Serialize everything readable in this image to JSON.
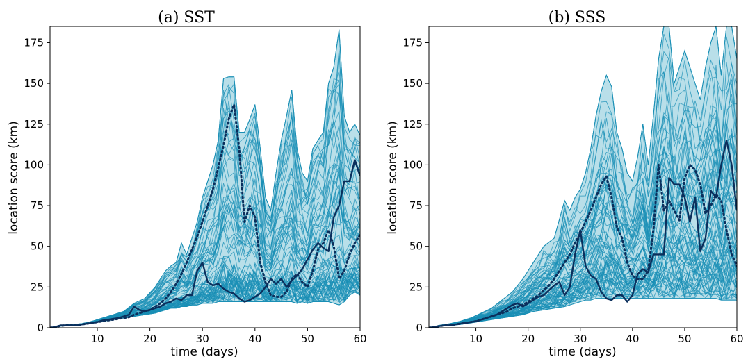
{
  "chart_data": [
    {
      "type": "area",
      "title": "(a) SST",
      "xlabel": "time (days)",
      "ylabel": "location score (km)",
      "xlim": [
        1,
        60
      ],
      "ylim": [
        0,
        185
      ],
      "xticks": [
        10,
        20,
        30,
        40,
        50,
        60
      ],
      "yticks": [
        0,
        25,
        50,
        75,
        100,
        125,
        150,
        175
      ],
      "grid": false,
      "colors": {
        "band_fill": "#b9dfe9",
        "ensemble": "#1a8fb5",
        "highlight": "#0b2f5c"
      },
      "envelope": {
        "x": [
          1,
          3,
          5,
          7,
          9,
          11,
          13,
          15,
          17,
          19,
          21,
          22,
          23,
          24,
          25,
          26,
          27,
          28,
          29,
          30,
          31,
          32,
          33,
          34,
          35,
          36,
          37,
          38,
          39,
          40,
          41,
          42,
          43,
          44,
          45,
          46,
          47,
          48,
          49,
          50,
          51,
          52,
          53,
          54,
          55,
          56,
          57,
          58,
          59,
          60
        ],
        "upper": [
          0,
          1.5,
          2,
          2.5,
          4,
          6,
          8,
          10,
          15,
          18,
          25,
          30,
          35,
          38,
          40,
          52,
          45,
          55,
          65,
          80,
          90,
          100,
          115,
          153,
          154,
          154,
          120,
          120,
          128,
          137,
          110,
          80,
          72,
          95,
          115,
          130,
          146,
          110,
          95,
          90,
          110,
          115,
          120,
          150,
          160,
          183,
          130,
          120,
          125,
          118
        ],
        "lower": [
          0,
          1,
          1.5,
          2,
          3,
          4,
          5,
          6,
          7,
          8,
          9,
          10,
          11,
          12,
          12,
          13,
          13,
          14,
          14,
          15,
          15,
          15,
          16,
          16,
          16,
          16,
          16,
          16,
          16,
          16,
          16,
          16,
          16,
          16,
          16,
          16,
          16,
          15,
          16,
          15,
          16,
          16,
          16,
          16,
          15,
          14,
          16,
          20,
          22,
          20
        ]
      },
      "series": [
        {
          "line": "solid",
          "x": [
            1,
            2,
            3,
            4,
            5,
            6,
            7,
            8,
            9,
            10,
            11,
            12,
            13,
            14,
            15,
            16,
            17,
            18,
            19,
            20,
            21,
            22,
            23,
            24,
            25,
            26,
            27,
            28,
            29,
            30,
            31,
            32,
            33,
            34,
            35,
            36,
            37,
            38,
            39,
            40,
            41,
            42,
            43,
            44,
            45,
            46,
            47,
            48,
            49,
            50,
            51,
            52,
            53,
            54,
            55,
            56,
            57,
            58,
            59,
            60
          ],
          "y": [
            0,
            0.5,
            1.5,
            1.5,
            1.5,
            1.5,
            2,
            2.5,
            3,
            3.5,
            4.5,
            5,
            5.5,
            6,
            7,
            8,
            13,
            11,
            10,
            11,
            12,
            13,
            15,
            16,
            18,
            17,
            20,
            20,
            35,
            40,
            28,
            26,
            27,
            24,
            22,
            21,
            18,
            16,
            17,
            19,
            21,
            25,
            30,
            27,
            30,
            25,
            29,
            32,
            36,
            42,
            48,
            52,
            49,
            47,
            68,
            75,
            90,
            90,
            103,
            93
          ]
        },
        {
          "line": "dotted",
          "x": [
            1,
            2,
            3,
            4,
            5,
            6,
            7,
            8,
            9,
            10,
            11,
            12,
            13,
            14,
            15,
            16,
            17,
            18,
            19,
            20,
            21,
            22,
            23,
            24,
            25,
            26,
            27,
            28,
            29,
            30,
            31,
            32,
            33,
            34,
            35,
            36,
            37,
            38,
            39,
            40,
            41,
            42,
            43,
            44,
            45,
            46,
            47,
            48,
            49,
            50,
            51,
            52,
            53,
            54,
            55,
            56,
            57,
            58,
            59,
            60
          ],
          "y": [
            0,
            0.5,
            1.2,
            1.5,
            1.5,
            1.5,
            2,
            2.5,
            3,
            3.5,
            4,
            4.5,
            5,
            5.5,
            6,
            6.5,
            8,
            9,
            10,
            11,
            13,
            15,
            18,
            22,
            27,
            33,
            40,
            48,
            56,
            65,
            75,
            85,
            98,
            112,
            128,
            137,
            110,
            65,
            75,
            68,
            40,
            28,
            20,
            19,
            19,
            22,
            30,
            33,
            28,
            25,
            35,
            48,
            52,
            60,
            50,
            30,
            35,
            45,
            52,
            57
          ]
        }
      ]
    },
    {
      "type": "area",
      "title": "(b) SSS",
      "xlabel": "time (days)",
      "ylabel": "location score (km)",
      "xlim": [
        1,
        60
      ],
      "ylim": [
        0,
        185
      ],
      "xticks": [
        10,
        20,
        30,
        40,
        50,
        60
      ],
      "yticks": [
        0,
        25,
        50,
        75,
        100,
        125,
        150,
        175
      ],
      "grid": false,
      "colors": {
        "band_fill": "#b9dfe9",
        "ensemble": "#1a8fb5",
        "highlight": "#0b2f5c"
      },
      "envelope": {
        "x": [
          1,
          3,
          5,
          7,
          9,
          11,
          13,
          15,
          17,
          19,
          21,
          23,
          25,
          27,
          28,
          29,
          30,
          31,
          32,
          33,
          34,
          35,
          36,
          37,
          38,
          39,
          40,
          41,
          42,
          43,
          44,
          45,
          46,
          47,
          48,
          49,
          50,
          51,
          52,
          53,
          54,
          55,
          56,
          57,
          58,
          59,
          60
        ],
        "upper": [
          0,
          1.5,
          2.5,
          4,
          6,
          9,
          12,
          17,
          22,
          30,
          40,
          50,
          55,
          78,
          72,
          80,
          85,
          95,
          110,
          130,
          145,
          155,
          148,
          120,
          110,
          95,
          90,
          105,
          125,
          100,
          130,
          165,
          187,
          187,
          150,
          160,
          170,
          160,
          150,
          140,
          160,
          175,
          187,
          155,
          185,
          187,
          165
        ],
        "lower": [
          0,
          1,
          1.5,
          2,
          3,
          4,
          5,
          6,
          7,
          8,
          10,
          11,
          12,
          13,
          14,
          15,
          16,
          17,
          17,
          18,
          18,
          18,
          18,
          18,
          18,
          18,
          18,
          18,
          18,
          18,
          18,
          18,
          18,
          18,
          18,
          18,
          18,
          18,
          18,
          18,
          18,
          18,
          18,
          17,
          17,
          17,
          17
        ]
      },
      "series": [
        {
          "line": "solid",
          "x": [
            1,
            2,
            3,
            4,
            5,
            6,
            7,
            8,
            9,
            10,
            11,
            12,
            13,
            14,
            15,
            16,
            17,
            18,
            19,
            20,
            21,
            22,
            23,
            24,
            25,
            26,
            27,
            28,
            29,
            30,
            31,
            32,
            33,
            34,
            35,
            36,
            37,
            38,
            39,
            40,
            41,
            42,
            43,
            44,
            45,
            46,
            47,
            48,
            49,
            50,
            51,
            52,
            53,
            54,
            55,
            56,
            57,
            58,
            59,
            60
          ],
          "y": [
            0,
            0.5,
            1,
            1.5,
            1.5,
            2,
            2.5,
            3,
            3.5,
            4,
            5,
            6,
            7,
            8,
            10,
            12,
            14,
            15,
            13,
            15,
            17,
            19,
            20,
            23,
            26,
            28,
            20,
            25,
            45,
            60,
            38,
            32,
            30,
            22,
            18,
            17,
            20,
            20,
            16,
            20,
            33,
            36,
            34,
            45,
            45,
            45,
            92,
            88,
            88,
            80,
            65,
            80,
            47,
            55,
            84,
            80,
            100,
            115,
            100,
            72
          ]
        },
        {
          "line": "dotted",
          "x": [
            1,
            2,
            3,
            4,
            5,
            6,
            7,
            8,
            9,
            10,
            11,
            12,
            13,
            14,
            15,
            16,
            17,
            18,
            19,
            20,
            21,
            22,
            23,
            24,
            25,
            26,
            27,
            28,
            29,
            30,
            31,
            32,
            33,
            34,
            35,
            36,
            37,
            38,
            39,
            40,
            41,
            42,
            43,
            44,
            45,
            46,
            47,
            48,
            49,
            50,
            51,
            52,
            53,
            54,
            55,
            56,
            57,
            58,
            59,
            60
          ],
          "y": [
            0,
            0.5,
            1,
            1.5,
            1.5,
            2,
            2.5,
            3,
            3.5,
            4,
            5,
            6,
            7,
            8,
            9,
            10,
            12,
            13,
            14,
            16,
            18,
            20,
            23,
            26,
            30,
            35,
            40,
            45,
            52,
            58,
            65,
            72,
            80,
            88,
            93,
            80,
            62,
            55,
            40,
            32,
            30,
            30,
            35,
            60,
            100,
            72,
            78,
            72,
            66,
            92,
            100,
            97,
            88,
            70,
            75,
            82,
            78,
            60,
            45,
            38
          ]
        }
      ]
    }
  ]
}
